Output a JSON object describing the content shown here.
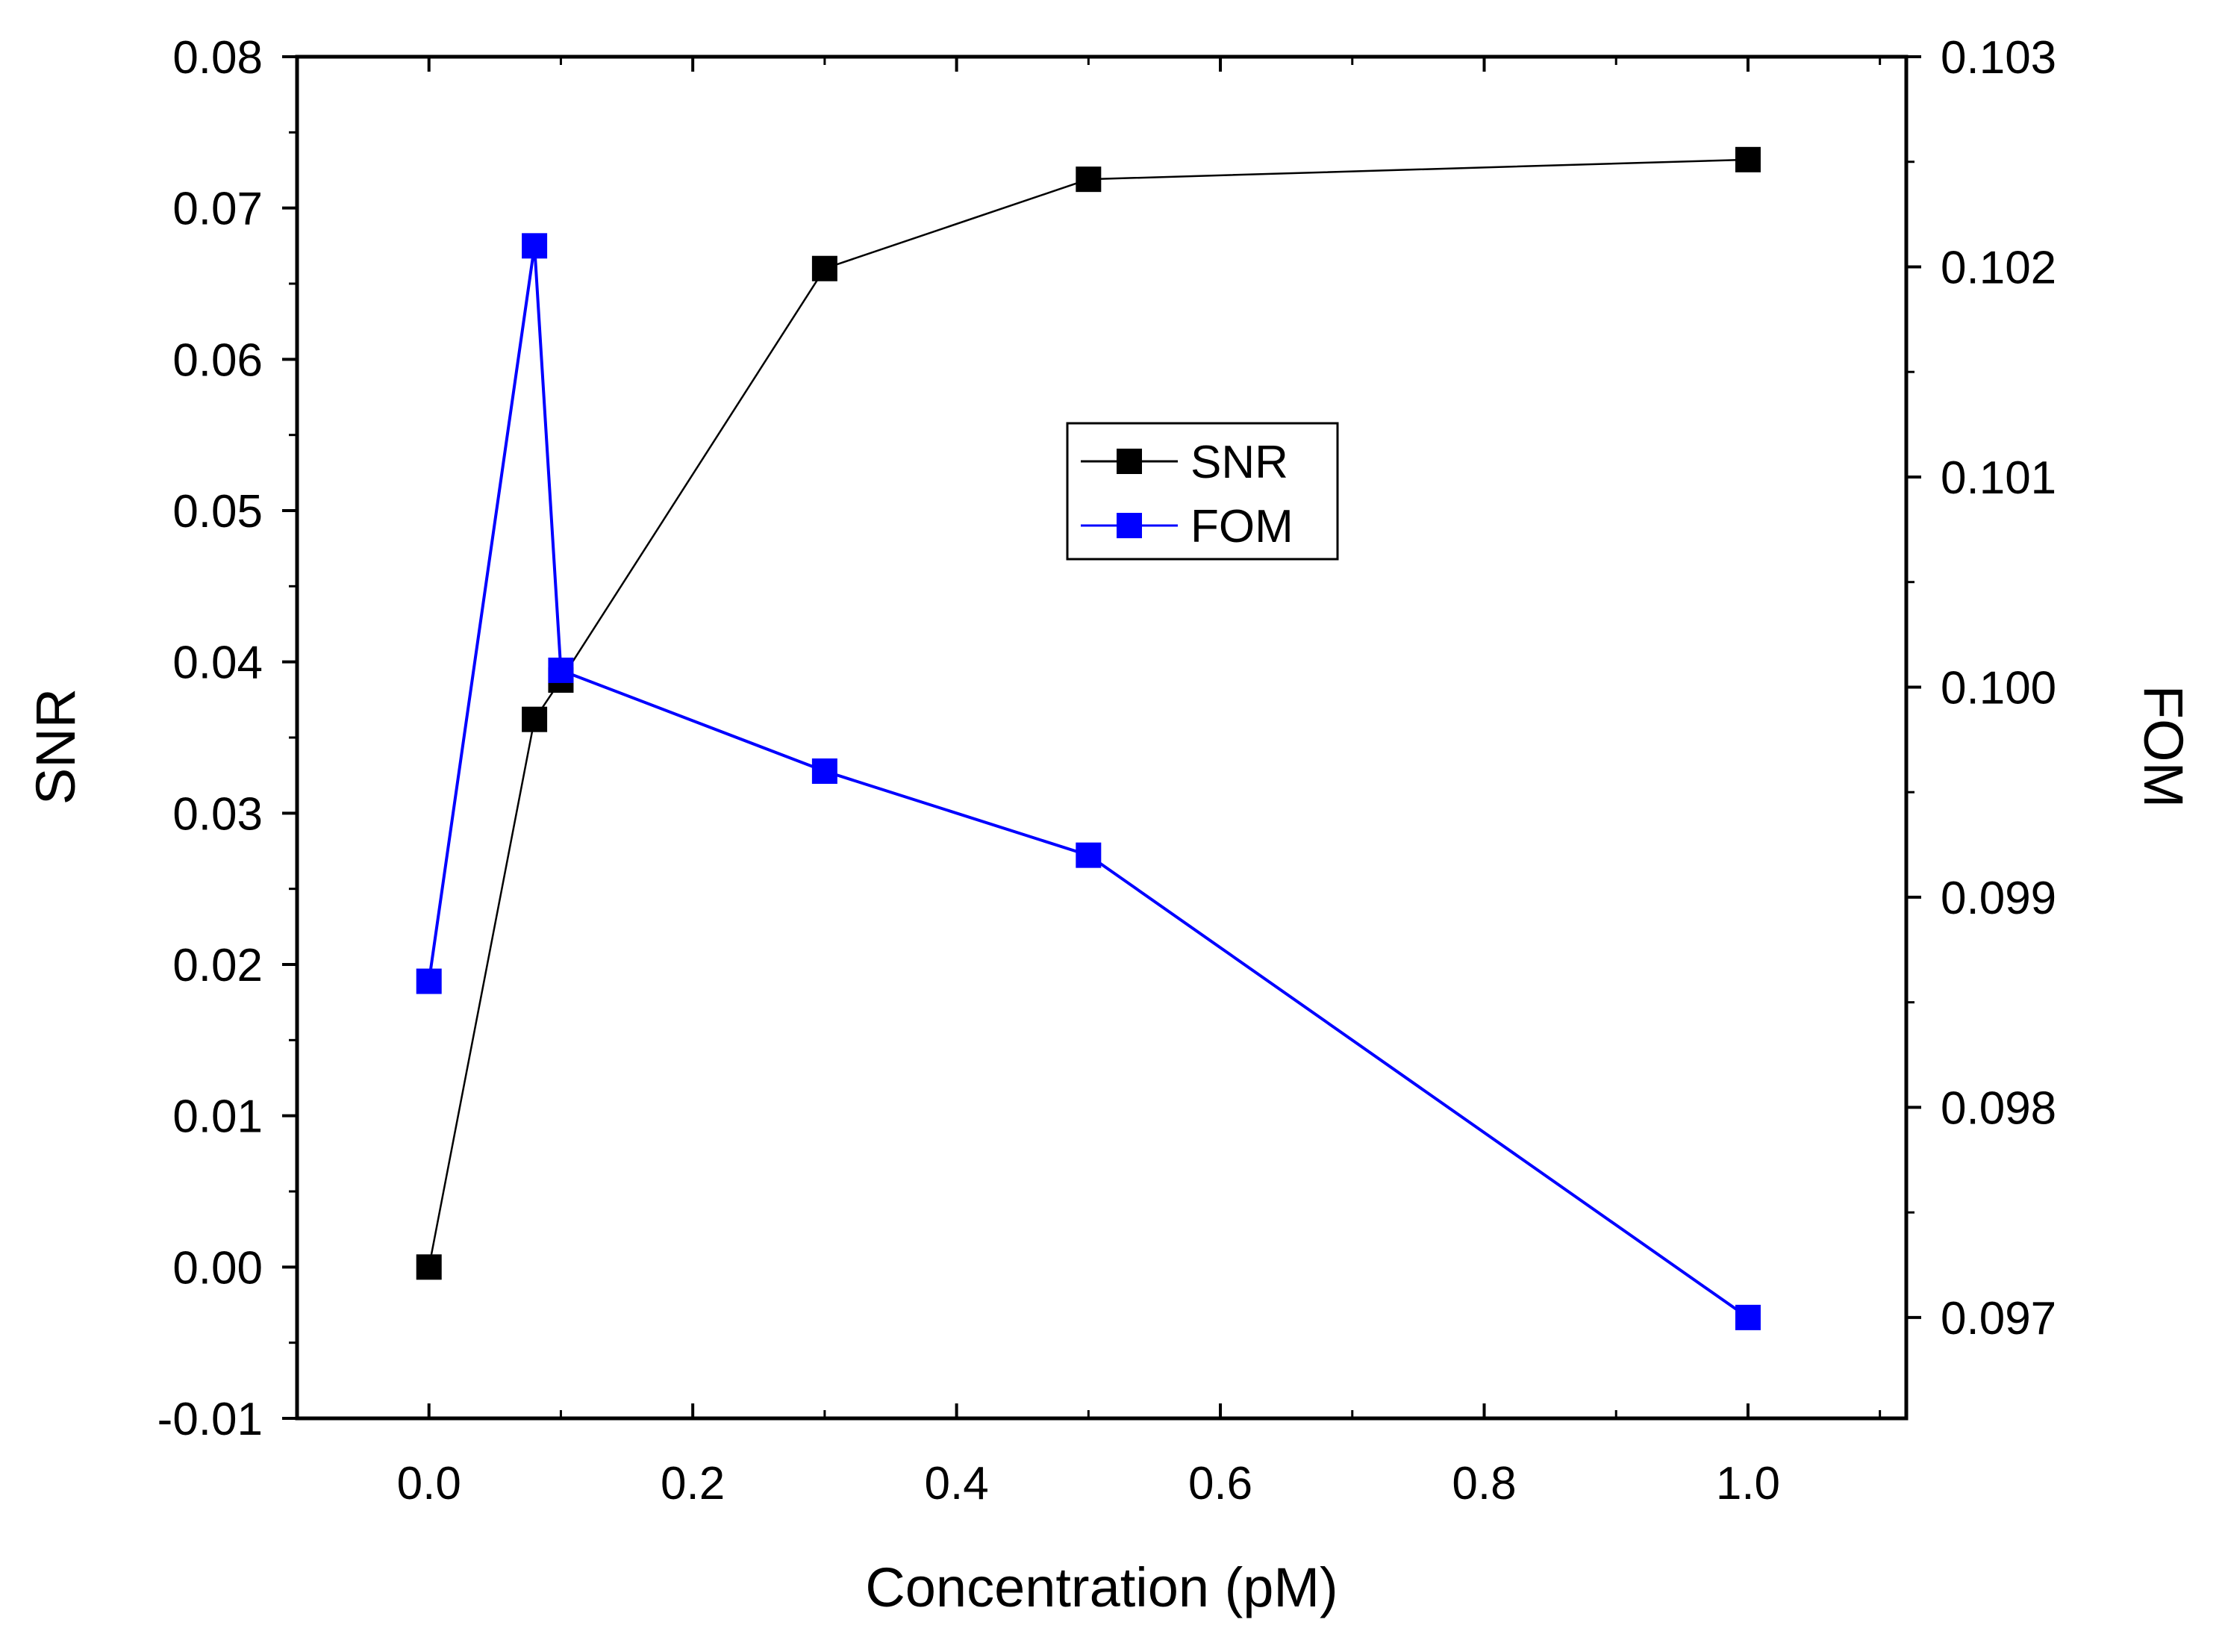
{
  "chart_data": {
    "type": "line",
    "xlabel": "Concentration (pM)",
    "ylabel": "SNR",
    "y2label": "FOM",
    "xlim": [
      -0.1,
      1.12
    ],
    "ylim": [
      -0.01,
      0.08
    ],
    "y2lim": [
      0.09652,
      0.103
    ],
    "x_ticks": [
      0.0,
      0.2,
      0.4,
      0.6,
      0.8,
      1.0
    ],
    "x_tick_labels": [
      "0.0",
      "0.2",
      "0.4",
      "0.6",
      "0.8",
      "1.0"
    ],
    "y_ticks": [
      -0.01,
      0.0,
      0.01,
      0.02,
      0.03,
      0.04,
      0.05,
      0.06,
      0.07,
      0.08
    ],
    "y_tick_labels": [
      "-0.01",
      "0.00",
      "0.01",
      "0.02",
      "0.03",
      "0.04",
      "0.05",
      "0.06",
      "0.07",
      "0.08"
    ],
    "y2_ticks": [
      0.097,
      0.098,
      0.099,
      0.1,
      0.101,
      0.102,
      0.103
    ],
    "y2_tick_labels": [
      "0.097",
      "0.098",
      "0.099",
      "0.100",
      "0.101",
      "0.102",
      "0.103"
    ],
    "legend_position": "upper-center",
    "series": [
      {
        "name": "SNR",
        "axis": "left",
        "color": "#000000",
        "x": [
          0.0,
          0.08,
          0.1,
          0.3,
          0.5,
          1.0
        ],
        "values": [
          0.0,
          0.0362,
          0.0388,
          0.066,
          0.0719,
          0.0732
        ]
      },
      {
        "name": "FOM",
        "axis": "right",
        "color": "#0000ff",
        "x": [
          0.0,
          0.08,
          0.1,
          0.3,
          0.5,
          1.0
        ],
        "values": [
          0.0986,
          0.1021,
          0.10008,
          0.0996,
          0.0992,
          0.097
        ]
      }
    ]
  }
}
